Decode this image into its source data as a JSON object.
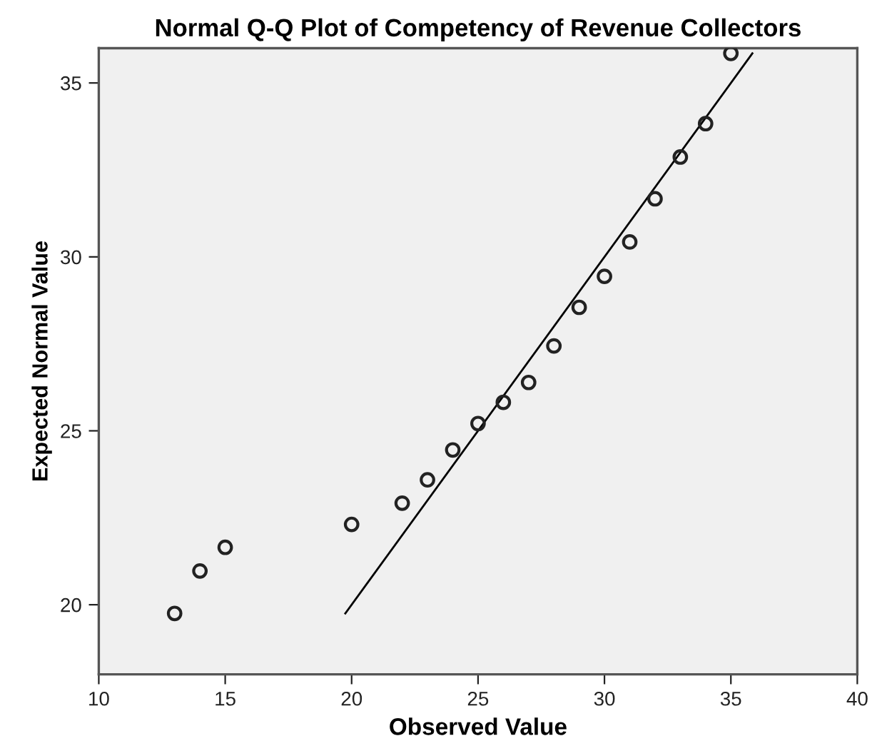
{
  "chart_data": {
    "type": "scatter",
    "title": "Normal Q-Q Plot of Competency of Revenue Collectors",
    "xlabel": "Observed Value",
    "ylabel": "Expected Normal Value",
    "xlim": [
      10,
      40
    ],
    "xticks": [
      10,
      15,
      20,
      25,
      30,
      35,
      40
    ],
    "ylim": [
      18,
      36
    ],
    "yticks": [
      20,
      25,
      30,
      35
    ],
    "grid": false,
    "legend": false,
    "marker": "circle",
    "series": [
      {
        "color": "#222222",
        "x": [
          13,
          14,
          15,
          20,
          22,
          23,
          24,
          25,
          26,
          27,
          28,
          29,
          30,
          31,
          32,
          33,
          34,
          35
        ],
        "values": [
          19.75,
          20.97,
          21.65,
          22.31,
          22.92,
          23.59,
          24.45,
          25.21,
          25.82,
          26.39,
          27.44,
          28.55,
          29.44,
          30.43,
          31.67,
          32.87,
          33.83,
          35.85
        ]
      },
      {
        "type": "line",
        "color": "#000000",
        "line_style": "solid",
        "marker": "none",
        "x": [
          19.75,
          35.85
        ],
        "values": [
          19.75,
          35.85
        ]
      }
    ]
  }
}
